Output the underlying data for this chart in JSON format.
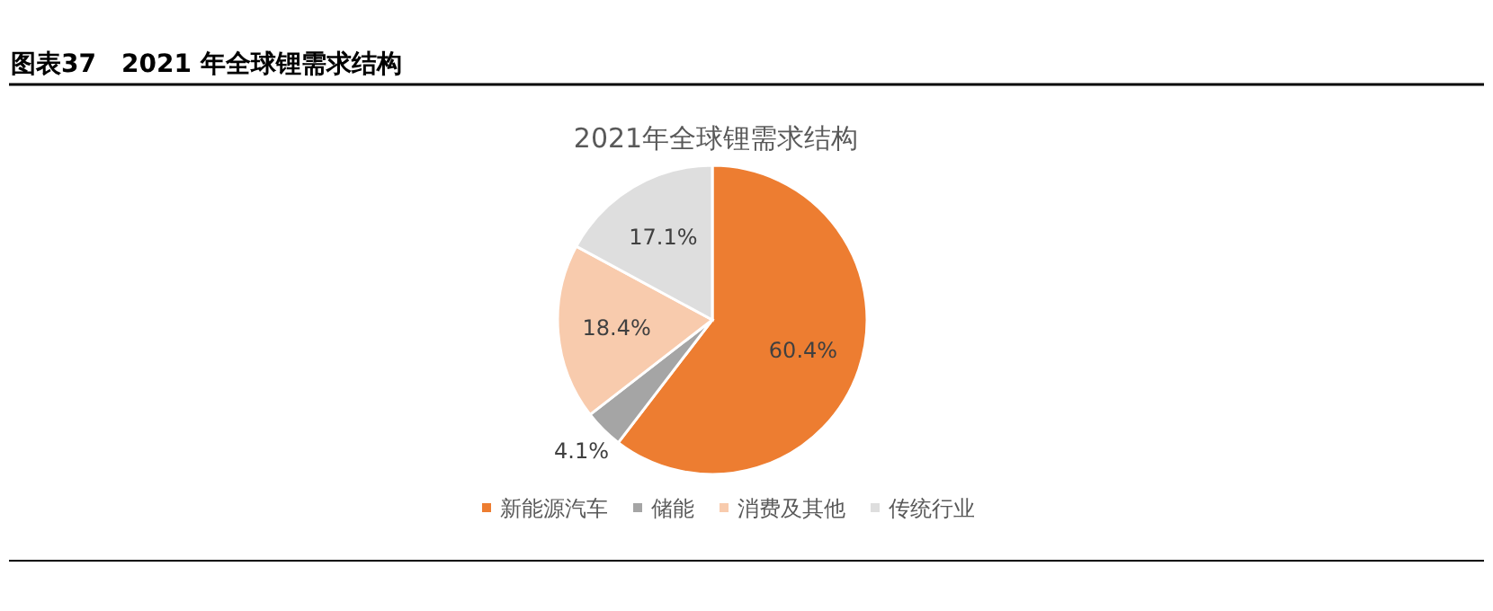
{
  "chart_data": {
    "type": "pie",
    "title": "图表37　2021 年全球锂需求结构",
    "subtitle": "2021年全球锂需求结构",
    "categories": [
      "新能源汽车",
      "储能",
      "消费及其他",
      "传统行业"
    ],
    "values": [
      60.4,
      4.1,
      18.4,
      17.1
    ],
    "value_labels": [
      "60.4%",
      "4.1%",
      "18.4%",
      "17.1%"
    ],
    "colors": [
      "#ed7d31",
      "#a5a5a5",
      "#f8cbad",
      "#dedede"
    ],
    "legend": "bottom"
  }
}
